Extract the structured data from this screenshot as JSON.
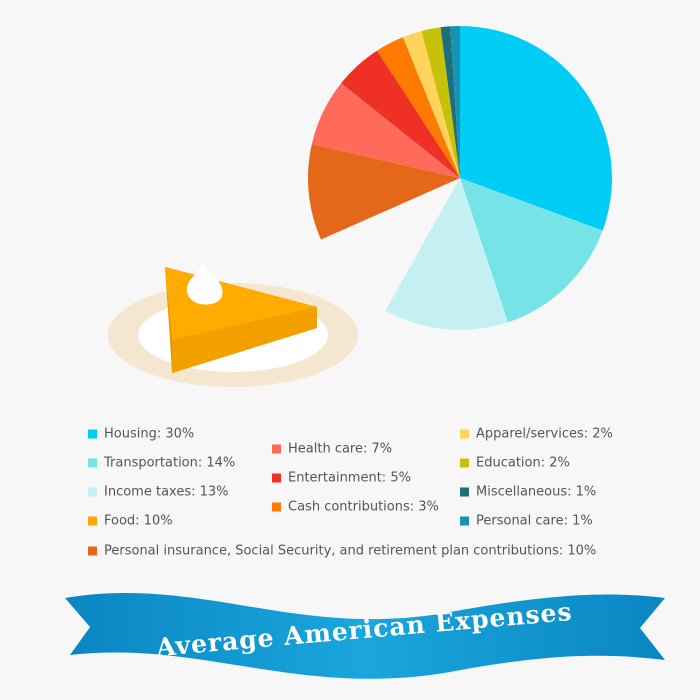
{
  "chart_data": {
    "type": "pie",
    "title": "Average American Expenses",
    "categories": [
      "Housing: 30%",
      "Transportation: 14%",
      "Income taxes: 13%",
      "Food: 10%",
      "Personal insurance, Social Security, and retirement plan contributions: 10%",
      "Health care: 7%",
      "Entertainment: 5%",
      "Cash contributions: 3%",
      "Apparel/services: 2%",
      "Education: 2%",
      "Miscellaneous: 1%",
      "Personal care: 1%"
    ],
    "values": [
      30,
      14,
      13,
      10,
      10,
      7,
      5,
      3,
      2,
      2,
      1,
      1
    ],
    "colors": [
      "#00cdf5",
      "#76e3e6",
      "#c5f0f3",
      "#ffa800",
      "#e5671a",
      "#ff6b5a",
      "#ee3124",
      "#ff7a00",
      "#ffd45a",
      "#c8c10a",
      "#1e6f7e",
      "#1a93b3"
    ]
  }
}
